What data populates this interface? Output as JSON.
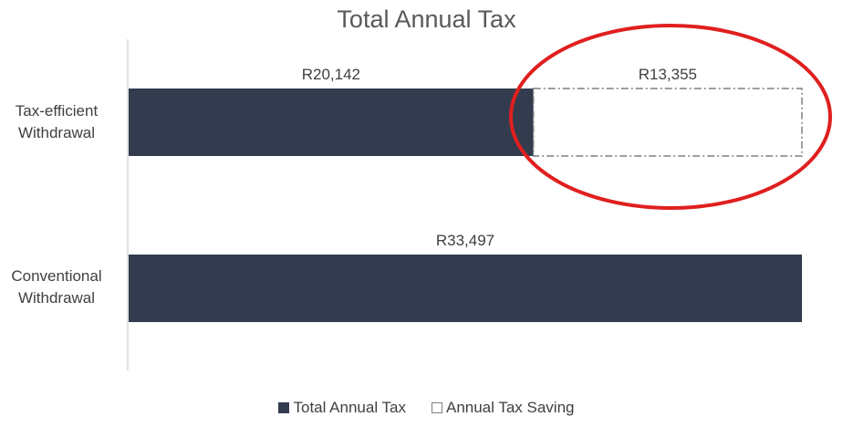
{
  "chart_data": {
    "type": "bar",
    "orientation": "horizontal",
    "stacked": true,
    "title": "Total Annual Tax",
    "categories": [
      "Tax-efficient Withdrawal",
      "Conventional Withdrawal"
    ],
    "series": [
      {
        "name": "Total Annual Tax",
        "values": [
          20142,
          33497
        ],
        "data_labels": [
          "R20,142",
          "R33,497"
        ],
        "color": "#323C4E"
      },
      {
        "name": "Annual Tax Saving",
        "values": [
          13355,
          0
        ],
        "data_labels": [
          "R13,355",
          ""
        ],
        "color": "#FFFFFF",
        "border_color": "#7F7F7F",
        "border_style": "dash-dot"
      }
    ],
    "xlim": [
      0,
      33497
    ],
    "grid": false,
    "legend_position": "bottom",
    "annotation": {
      "shape": "ellipse",
      "color": "#E01F1F",
      "highlights": "Annual Tax Saving"
    }
  }
}
